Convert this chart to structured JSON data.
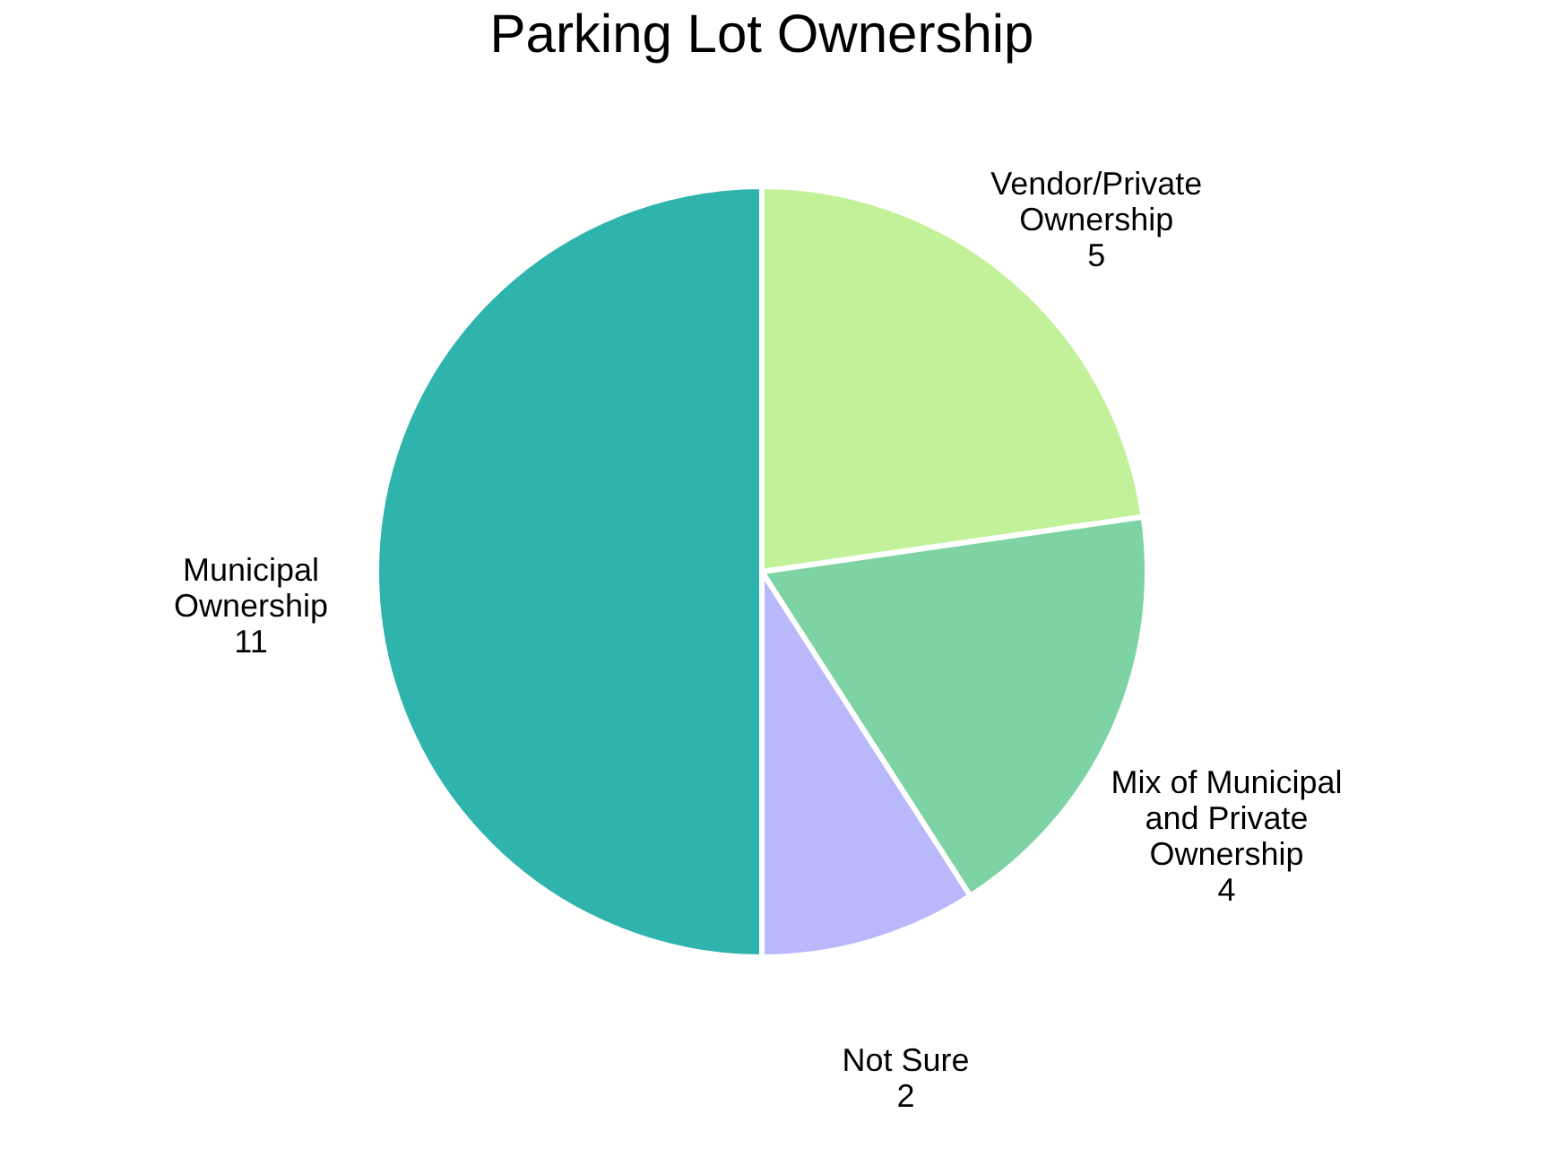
{
  "chart_data": {
    "type": "pie",
    "title": "Parking Lot Ownership",
    "categories": [
      "Vendor/Private Ownership",
      "Mix of Municipal and Private Ownership",
      "Not Sure",
      "Municipal Ownership"
    ],
    "values": [
      5,
      4,
      2,
      11
    ],
    "colors": [
      "#c3f199",
      "#7dd3a4",
      "#b8b8fa",
      "#2fb3ad"
    ],
    "data_labels": true,
    "legend": false
  }
}
